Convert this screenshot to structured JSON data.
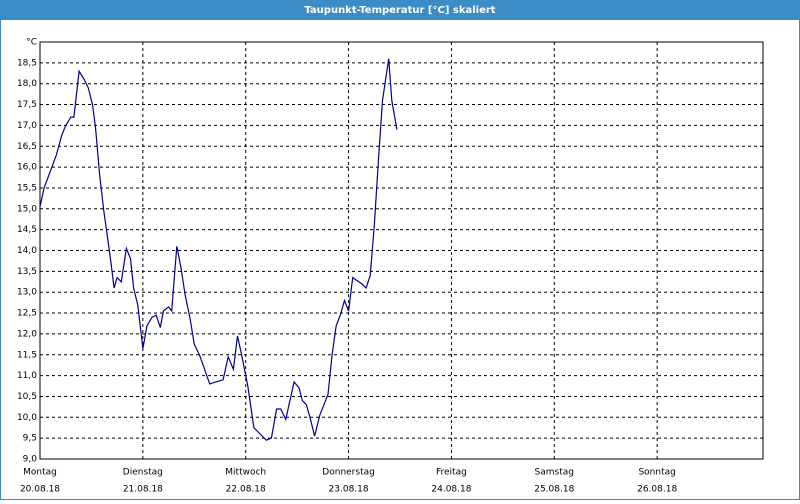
{
  "chart_data": {
    "type": "line",
    "title": "Taupunkt-Temperatur [°C] skaliert",
    "xlim": [
      0,
      7
    ],
    "ylim": [
      9,
      19
    ],
    "xticks": [
      {
        "value": 0,
        "label": "Montag"
      },
      {
        "value": 1,
        "label": "Dienstag"
      },
      {
        "value": 2,
        "label": "Mittwoch"
      },
      {
        "value": 3,
        "label": "Donnerstag"
      },
      {
        "value": 4,
        "label": "Freitag"
      },
      {
        "value": 5,
        "label": "Samstag"
      },
      {
        "value": 6,
        "label": "Sonntag"
      }
    ],
    "x_dates": [
      "20.08.18",
      "21.08.18",
      "22.08.18",
      "23.08.18",
      "24.08.18",
      "25.08.18",
      "26.08.18"
    ],
    "yticks": [
      {
        "value": 9,
        "label": "9,0"
      },
      {
        "value": 9.5,
        "label": "9,5"
      },
      {
        "value": 10,
        "label": "10,0"
      },
      {
        "value": 10.5,
        "label": "10,5"
      },
      {
        "value": 11,
        "label": "11,0"
      },
      {
        "value": 11.5,
        "label": "11,5"
      },
      {
        "value": 12,
        "label": "12,0"
      },
      {
        "value": 12.5,
        "label": "12,5"
      },
      {
        "value": 13,
        "label": "13,0"
      },
      {
        "value": 13.5,
        "label": "13,5"
      },
      {
        "value": 14,
        "label": "14,0"
      },
      {
        "value": 14.5,
        "label": "14,5"
      },
      {
        "value": 15,
        "label": "15,0"
      },
      {
        "value": 15.5,
        "label": "15,5"
      },
      {
        "value": 16,
        "label": "16,0"
      },
      {
        "value": 16.5,
        "label": "16,5"
      },
      {
        "value": 17,
        "label": "17,0"
      },
      {
        "value": 17.5,
        "label": "17,5"
      },
      {
        "value": 18,
        "label": "18,0"
      },
      {
        "value": 18.5,
        "label": "18,5"
      },
      {
        "value": 19,
        "label": "°C"
      }
    ],
    "grid": true,
    "series": [
      {
        "color": "#00008b",
        "x": [
          0,
          0.04,
          0.1,
          0.16,
          0.21,
          0.25,
          0.3,
          0.33,
          0.38,
          0.43,
          0.47,
          0.51,
          0.54,
          0.58,
          0.62,
          0.66,
          0.69,
          0.72,
          0.75,
          0.79,
          0.84,
          0.88,
          0.91,
          0.95,
          1.0,
          1.04,
          1.09,
          1.13,
          1.17,
          1.2,
          1.25,
          1.28,
          1.33,
          1.37,
          1.41,
          1.46,
          1.5,
          1.55,
          1.6,
          1.65,
          1.71,
          1.78,
          1.83,
          1.88,
          1.92,
          1.96,
          2.02,
          2.08,
          2.14,
          2.2,
          2.25,
          2.3,
          2.34,
          2.39,
          2.43,
          2.47,
          2.52,
          2.55,
          2.59,
          2.63,
          2.67,
          2.72,
          2.76,
          2.8,
          2.84,
          2.88,
          2.92,
          2.96,
          3.0,
          3.04,
          3.07,
          3.13,
          3.17,
          3.21,
          3.25,
          3.29,
          3.33,
          3.39,
          3.42,
          3.47
        ],
        "values": [
          15.05,
          15.5,
          15.9,
          16.3,
          16.75,
          17.0,
          17.2,
          17.2,
          18.3,
          18.1,
          17.9,
          17.5,
          16.95,
          15.8,
          14.95,
          14.25,
          13.7,
          13.1,
          13.35,
          13.25,
          14.05,
          13.8,
          13.1,
          12.7,
          11.65,
          12.2,
          12.4,
          12.45,
          12.15,
          12.55,
          12.65,
          12.55,
          14.1,
          13.6,
          12.95,
          12.35,
          11.75,
          11.5,
          11.15,
          10.8,
          10.85,
          10.9,
          11.45,
          11.15,
          11.95,
          11.5,
          10.75,
          9.75,
          9.6,
          9.45,
          9.5,
          10.2,
          10.2,
          9.95,
          10.4,
          10.85,
          10.7,
          10.4,
          10.3,
          9.95,
          9.55,
          10.05,
          10.3,
          10.55,
          11.5,
          12.2,
          12.45,
          12.8,
          12.55,
          13.35,
          13.3,
          13.2,
          13.1,
          13.4,
          14.6,
          16.15,
          17.6,
          18.6,
          17.6,
          16.9
        ]
      }
    ]
  }
}
